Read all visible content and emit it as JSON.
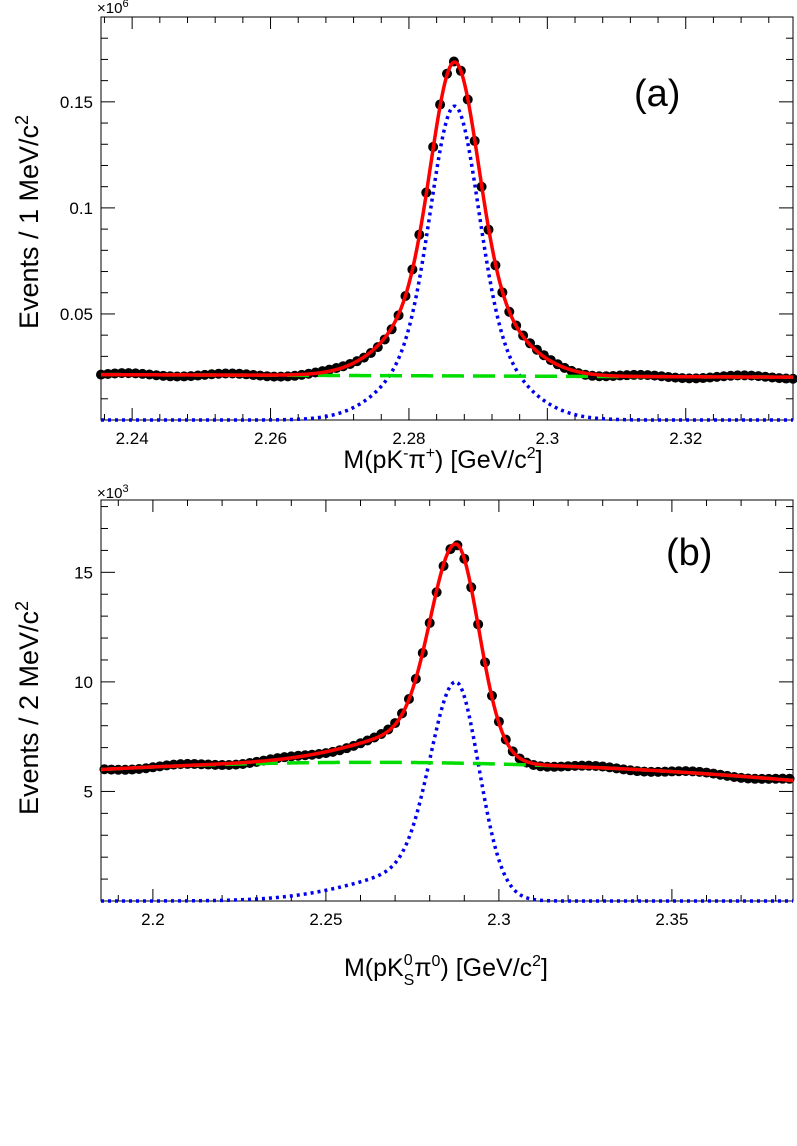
{
  "chart_data": [
    {
      "type": "line",
      "panel_label": "(a)",
      "exponent_label": "×10",
      "exponent_power": "6",
      "ylabel": "Events / 1 MeV/c",
      "ylabel_sup": "2",
      "xlabel": {
        "p1": "M(pK",
        "s1": "-",
        "p2": "π",
        "s2": "+",
        "p3": ") [GeV/c",
        "s3": "2",
        "p4": "]"
      },
      "xlim": [
        2.2355,
        2.3355
      ],
      "ylim": [
        0,
        0.19
      ],
      "x_ticks": [
        2.24,
        2.26,
        2.28,
        2.3,
        2.32
      ],
      "x_tick_labels": [
        "2.24",
        "2.26",
        "2.28",
        "2.3",
        "2.32"
      ],
      "y_ticks": [
        0.05,
        0.1,
        0.15
      ],
      "y_tick_labels": [
        "0.05",
        "0.1",
        "0.15"
      ],
      "model": {
        "bkg_a": 0.0214,
        "bkg_slope": -0.012,
        "x_ref": 2.2355,
        "signal_amp": 0.148,
        "mean": 2.2866,
        "sigma": 0.0033,
        "tail_frac": 0.3,
        "tail_sigma_scale": 2.2
      },
      "data_points": {
        "x_start": 2.2355,
        "step": 0.001,
        "count": 101
      },
      "series": [
        {
          "role": "data",
          "color": "#000000"
        },
        {
          "role": "total-fit",
          "color": "#ff0000"
        },
        {
          "role": "signal",
          "color": "#0000ee"
        },
        {
          "role": "background",
          "color": "#00dd00"
        }
      ]
    },
    {
      "type": "line",
      "panel_label": "(b)",
      "exponent_label": "×10",
      "exponent_power": "3",
      "ylabel": "Events / 2 MeV/c",
      "ylabel_sup": "2",
      "xlabel": {
        "p1": "M(pK",
        "sup": "0",
        "sub": "S",
        "p2": "π",
        "s2": "0",
        "p3": ") [GeV/c",
        "s3": "2",
        "p4": "]"
      },
      "xlim": [
        2.185,
        2.385
      ],
      "ylim": [
        0,
        18.3
      ],
      "x_ticks": [
        2.2,
        2.25,
        2.3,
        2.35
      ],
      "x_tick_labels": [
        "2.2",
        "2.25",
        "2.3",
        "2.35"
      ],
      "y_ticks": [
        5,
        10,
        15
      ],
      "y_tick_labels": [
        "5",
        "10",
        "15"
      ],
      "model": {
        "bkg_a": 6.0,
        "bkg_b": 6.3,
        "bkg_c": 5.5,
        "signal_amp": 10.0,
        "mean": 2.2875,
        "sigma_right": 0.0065,
        "sigma_left": 0.0072,
        "tail_frac": 0.17,
        "tail_sigma_scale": 3.3
      },
      "data_points": {
        "x_start": 2.186,
        "step": 0.002,
        "count": 100
      },
      "series": [
        {
          "role": "data",
          "color": "#000000"
        },
        {
          "role": "total-fit",
          "color": "#ff0000"
        },
        {
          "role": "signal",
          "color": "#0000ee"
        },
        {
          "role": "background",
          "color": "#00dd00"
        }
      ]
    }
  ]
}
